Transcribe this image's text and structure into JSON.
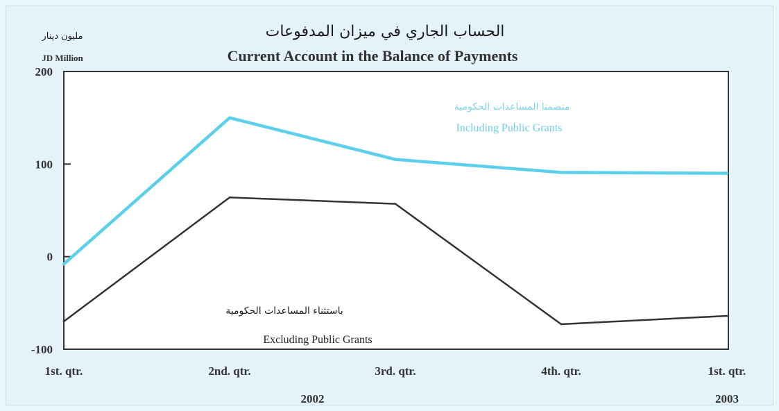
{
  "title_ar": "الحساب الجاري في ميزان المدفوعات",
  "title_en": "Current Account in the Balance of Payments",
  "unit_ar": "مليون دينار",
  "unit_en": "JD Million",
  "colors": {
    "including": "#5ccfea",
    "excluding": "#333333",
    "background": "#e4f3fa",
    "plot_area": "#ffffff"
  },
  "chart_data": {
    "type": "line",
    "categories": [
      "1st. qtr.",
      "2nd. qtr.",
      "3rd. qtr.",
      "4th. qtr.",
      "1st. qtr."
    ],
    "year_labels": [
      {
        "label": "2002",
        "under_index": 1.5
      },
      {
        "label": "2003",
        "under_index": 4
      }
    ],
    "ylim": [
      -100,
      200
    ],
    "yticks": [
      {
        "value": 200,
        "label": "200"
      },
      {
        "value": 100,
        "label": "100"
      },
      {
        "value": 0,
        "label": "0"
      },
      {
        "value": -100,
        "label": "-100"
      }
    ],
    "series": [
      {
        "name": "Including Public Grants",
        "name_ar": "متضمنا المساعدات الحكومية",
        "color": "#5ccfea",
        "values": [
          -8,
          150,
          105,
          91,
          90
        ]
      },
      {
        "name": "Excluding Public Grants",
        "name_ar": "باستثناء المساعدات الحكومية",
        "color": "#333333",
        "values": [
          -70,
          64,
          57,
          -73,
          -64
        ]
      }
    ],
    "grid": false
  }
}
